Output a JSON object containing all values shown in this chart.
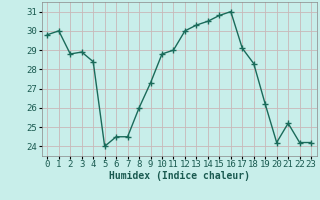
{
  "x": [
    0,
    1,
    2,
    3,
    4,
    5,
    6,
    7,
    8,
    9,
    10,
    11,
    12,
    13,
    14,
    15,
    16,
    17,
    18,
    19,
    20,
    21,
    22,
    23
  ],
  "y": [
    29.8,
    30.0,
    28.8,
    28.9,
    28.4,
    24.0,
    24.5,
    24.5,
    26.0,
    27.3,
    28.8,
    29.0,
    30.0,
    30.3,
    30.5,
    30.8,
    31.0,
    29.1,
    28.3,
    26.2,
    24.2,
    25.2,
    24.2,
    24.2
  ],
  "line_color": "#1a6b5a",
  "marker": "+",
  "bg_color": "#c8eeea",
  "grid_color": "#c8b8b8",
  "xlabel": "Humidex (Indice chaleur)",
  "ylabel_ticks": [
    24,
    25,
    26,
    27,
    28,
    29,
    30,
    31
  ],
  "ylim": [
    23.5,
    31.5
  ],
  "xlim": [
    -0.5,
    23.5
  ],
  "xlabel_fontsize": 7,
  "tick_fontsize": 6.5,
  "figsize": [
    3.2,
    2.0
  ],
  "dpi": 100
}
